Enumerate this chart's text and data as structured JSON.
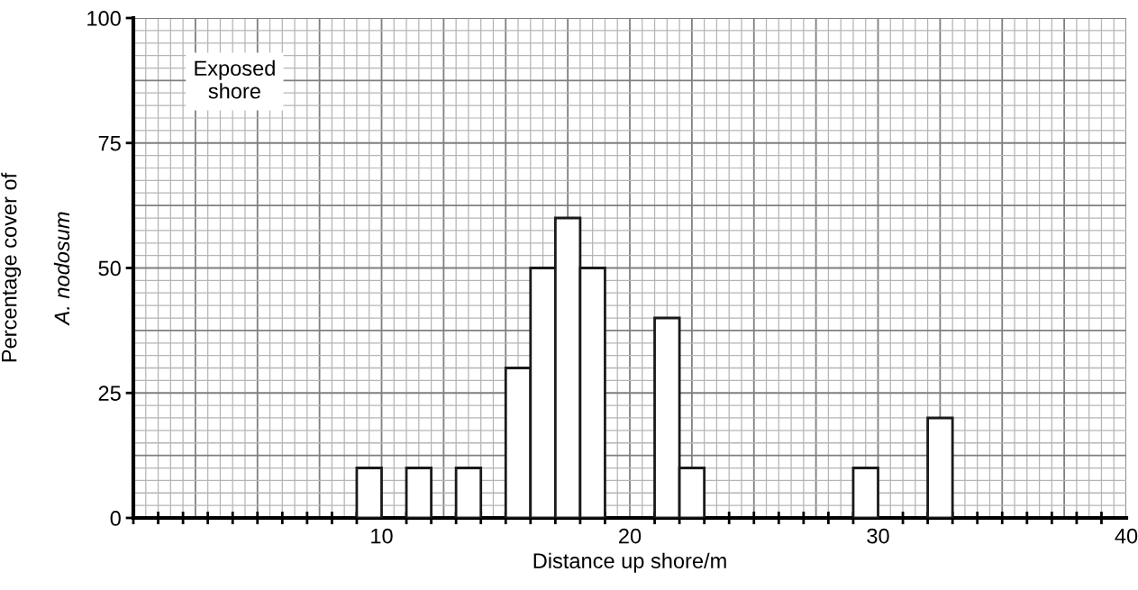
{
  "chart_data": {
    "type": "bar",
    "xlabel": "Distance up shore/m",
    "ylabel": "Percentage cover of\nA. nodosum",
    "x": [
      9.5,
      11.5,
      13.5,
      15.5,
      16.5,
      17.5,
      18.5,
      21.5,
      22.5,
      29.5,
      32.5
    ],
    "values": [
      10,
      10,
      10,
      30,
      50,
      60,
      50,
      40,
      10,
      10,
      20
    ],
    "color": "#ffffff",
    "xlim": [
      0,
      40
    ],
    "xticks": [
      10,
      20,
      30,
      40
    ],
    "ylim": [
      0,
      100
    ],
    "yticks": [
      0,
      25,
      50,
      75,
      100
    ],
    "grid": true,
    "annotations": [
      "Exposed\nshore"
    ]
  }
}
